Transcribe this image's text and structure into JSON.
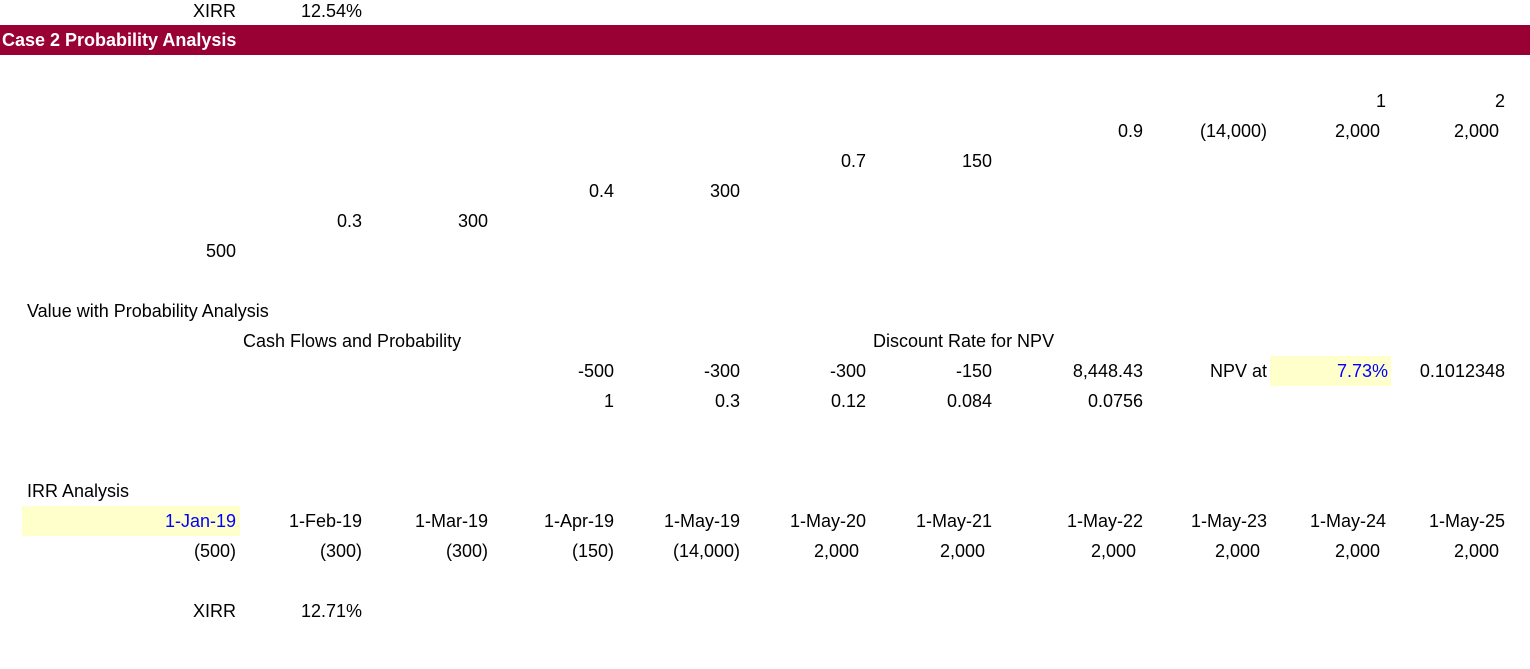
{
  "top": {
    "xirr_label": "XIRR",
    "xirr_value": "12.54%"
  },
  "banner": {
    "title": "Case 2 Probability Analysis",
    "color": "#990033"
  },
  "tree": {
    "period_headers": [
      "1",
      "2"
    ],
    "row1": [
      "0.9",
      "(14,000)",
      "2,000",
      "2,000"
    ],
    "row2": [
      "0.7",
      "150"
    ],
    "row3": [
      "0.4",
      "300"
    ],
    "row4": [
      "0.3",
      "300"
    ],
    "row5": [
      "500"
    ]
  },
  "value": {
    "title": "Value with Probability Analysis",
    "cash_flows_label": "Cash Flows and Probability",
    "discount_label": "Discount Rate for NPV",
    "cash_flows": [
      "-500",
      "-300",
      "-300",
      "-150",
      "8,448.43"
    ],
    "npv_label": "NPV at",
    "npv_rate": "7.73%",
    "npv_result": "0.1012348",
    "probabilities": [
      "1",
      "0.3",
      "0.12",
      "0.084",
      "0.0756"
    ]
  },
  "irr": {
    "title": "IRR Analysis",
    "dates": [
      "1-Jan-19",
      "1-Feb-19",
      "1-Mar-19",
      "1-Apr-19",
      "1-May-19",
      "1-May-20",
      "1-May-21",
      "1-May-22",
      "1-May-23",
      "1-May-24",
      "1-May-25"
    ],
    "flows": [
      "(500)",
      "(300)",
      "(300)",
      "(150)",
      "(14,000)",
      "2,000",
      "2,000",
      "2,000",
      "2,000",
      "2,000",
      "2,000"
    ],
    "xirr_label": "XIRR",
    "xirr_value": "12.71%"
  },
  "colors": {
    "input_fill": "#ffffcc",
    "input_text": "#0000ff"
  }
}
